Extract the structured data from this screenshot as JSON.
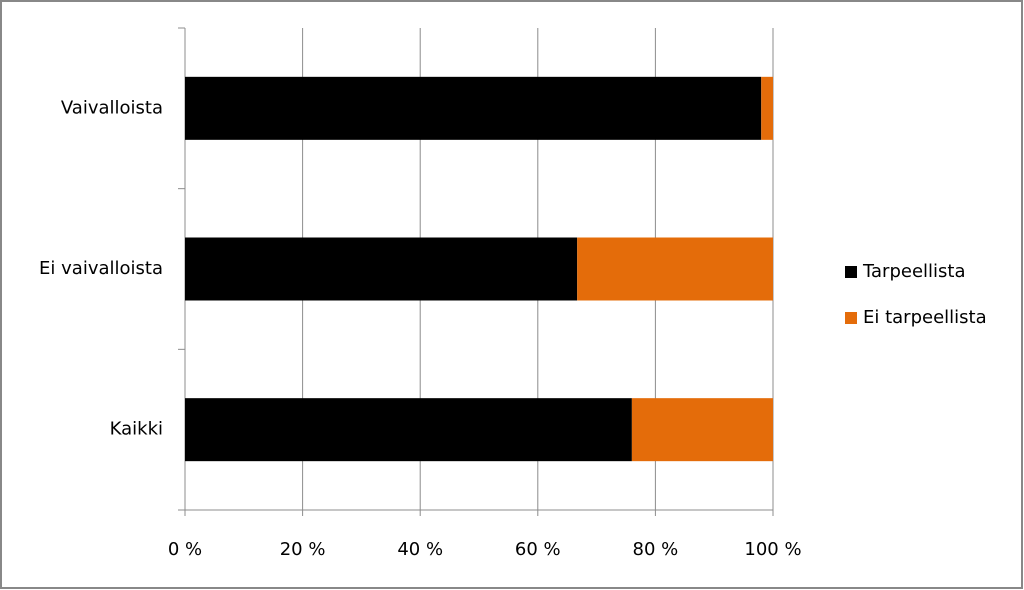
{
  "chart_data": {
    "type": "stacked-bar-horizontal",
    "categories": [
      "Vaivalloista",
      "Ei vaivalloista",
      "Kaikki"
    ],
    "series": [
      {
        "name": "Tarpeellista",
        "color": "#000000",
        "values": [
          98,
          66.7,
          76
        ]
      },
      {
        "name": "Ei tarpeellista",
        "color": "#e46c0a",
        "values": [
          2,
          33.3,
          24
        ]
      }
    ],
    "xlim": [
      0,
      100
    ],
    "xticks": [
      {
        "value": 0,
        "label": "0 %"
      },
      {
        "value": 20,
        "label": "20 %"
      },
      {
        "value": 40,
        "label": "40 %"
      },
      {
        "value": 60,
        "label": "60 %"
      },
      {
        "value": 80,
        "label": "80 %"
      },
      {
        "value": 100,
        "label": "100 %"
      }
    ],
    "grid": true,
    "legend": "right"
  }
}
